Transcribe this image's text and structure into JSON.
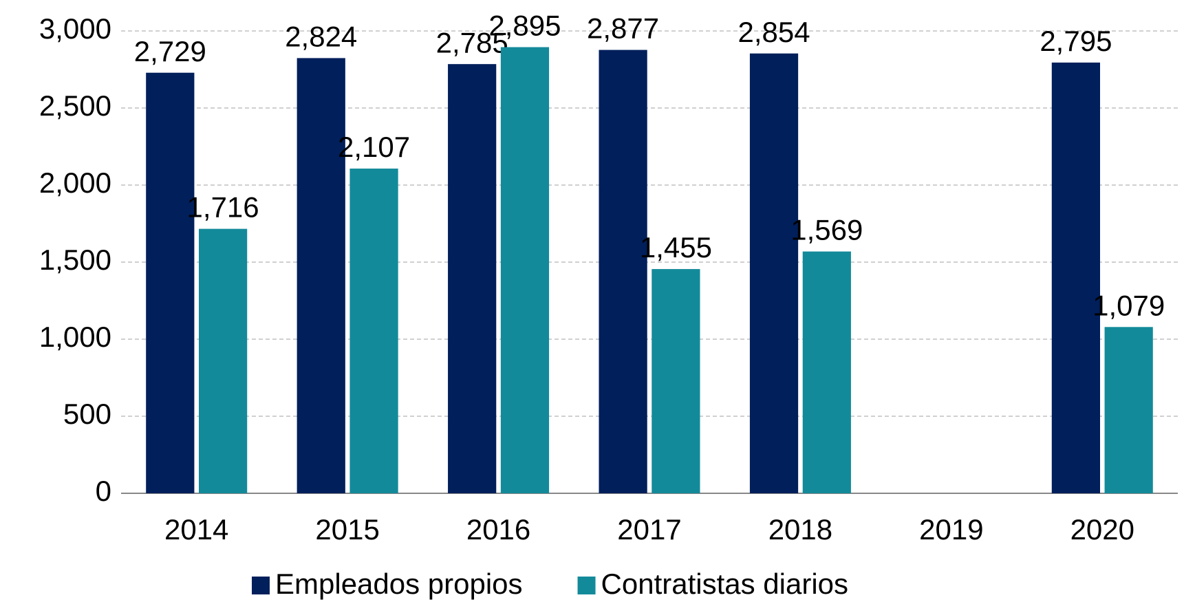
{
  "chart_data": {
    "type": "bar",
    "categories": [
      "2014",
      "2015",
      "2016",
      "2017",
      "2018",
      "2019",
      "2020"
    ],
    "series": [
      {
        "name": "Empleados propios",
        "color": "#001f5b",
        "values": [
          2729,
          2824,
          2785,
          2877,
          2854,
          null,
          2795
        ],
        "value_labels": [
          "2,729",
          "2,824",
          "2,785",
          "2,877",
          "2,854",
          null,
          "2,795"
        ]
      },
      {
        "name": "Contratistas diarios",
        "color": "#138a9a",
        "values": [
          1716,
          2107,
          2895,
          1455,
          1569,
          null,
          1079
        ],
        "value_labels": [
          "1,716",
          "2,107",
          "2,895",
          "1,455",
          "1,569",
          null,
          "1,079"
        ]
      }
    ],
    "ylim": [
      0,
      3000
    ],
    "yticks": [
      0,
      500,
      {
        "value": 1000,
        "label": "1,000"
      },
      {
        "value": 1500,
        "label": "1,500"
      },
      {
        "value": 2000,
        "label": "2,000"
      },
      {
        "value": 2500,
        "label": "2,500"
      },
      {
        "value": 3000,
        "label": "3,000"
      }
    ],
    "grid": true,
    "legend": "bottom"
  }
}
